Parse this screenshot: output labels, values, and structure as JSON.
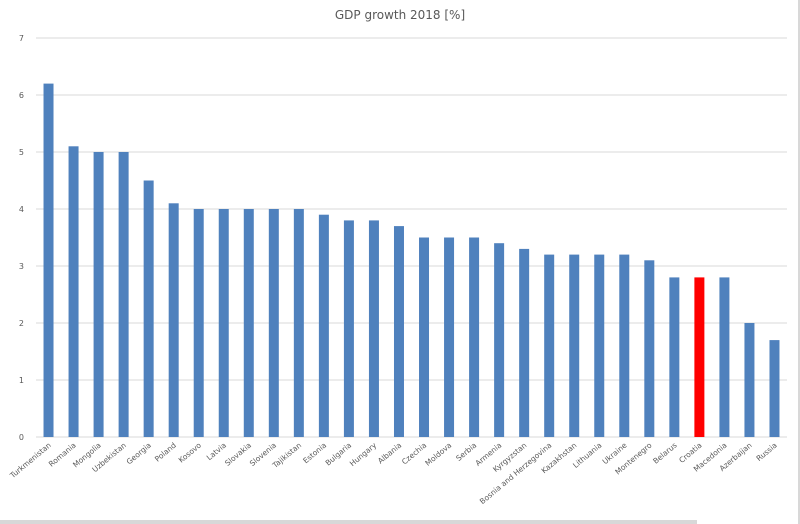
{
  "chart_data": {
    "type": "bar",
    "title": "GDP growth 2018 [%]",
    "xlabel": "",
    "ylabel": "",
    "ylim": [
      0,
      7
    ],
    "yticks": [
      0,
      1,
      2,
      3,
      4,
      5,
      6,
      7
    ],
    "grid": true,
    "legend": "none",
    "bar_color": "#4f81bd",
    "highlight_color": "#ff0000",
    "highlight_category": "Croatia",
    "categories": [
      "Turkmenistan",
      "Romania",
      "Mongolia",
      "Uzbekistan",
      "Georgia",
      "Poland",
      "Kosovo",
      "Latvia",
      "Slovakia",
      "Slovenia",
      "Tajikistan",
      "Estonia",
      "Bulgaria",
      "Hungary",
      "Albania",
      "Czechia",
      "Moldova",
      "Serbia",
      "Armenia",
      "Kyrgyzstan",
      "Bosnia and Herzegovina",
      "Kazakhstan",
      "Lithuania",
      "Ukraine",
      "Montenegro",
      "Belarus",
      "Croatia",
      "Macedonia",
      "Azerbaijan",
      "Russia"
    ],
    "values": [
      6.2,
      5.1,
      5.0,
      5.0,
      4.5,
      4.1,
      4.0,
      4.0,
      4.0,
      4.0,
      4.0,
      3.9,
      3.8,
      3.8,
      3.7,
      3.5,
      3.5,
      3.5,
      3.4,
      3.3,
      3.2,
      3.2,
      3.2,
      3.2,
      3.1,
      2.8,
      2.8,
      2.8,
      2.0,
      1.7
    ]
  }
}
